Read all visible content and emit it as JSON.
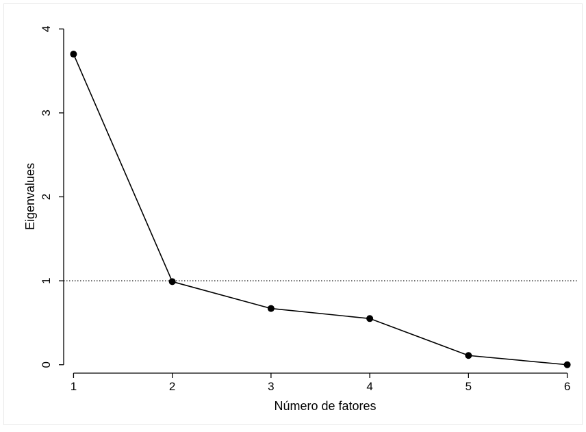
{
  "chart_data": {
    "type": "line",
    "title": "",
    "xlabel": "Número de fatores",
    "ylabel": "Eigenvalues",
    "x": [
      1,
      2,
      3,
      4,
      5,
      6
    ],
    "series": [
      {
        "values": [
          3.7,
          0.99,
          0.67,
          0.55,
          0.11,
          0.0
        ]
      }
    ],
    "xticks": [
      "1",
      "2",
      "3",
      "4",
      "5",
      "6"
    ],
    "yticks": [
      "0",
      "1",
      "2",
      "3",
      "4"
    ],
    "xlim": [
      0.9,
      6.1
    ],
    "ylim": [
      -0.1,
      4.1
    ],
    "reference_line": {
      "y": 1,
      "style": "dotted"
    },
    "grid": false,
    "legend": "none",
    "colors": {
      "line": "#000000",
      "marker": "#000000",
      "background": "#ffffff",
      "frame": "#e8e8e8"
    }
  }
}
